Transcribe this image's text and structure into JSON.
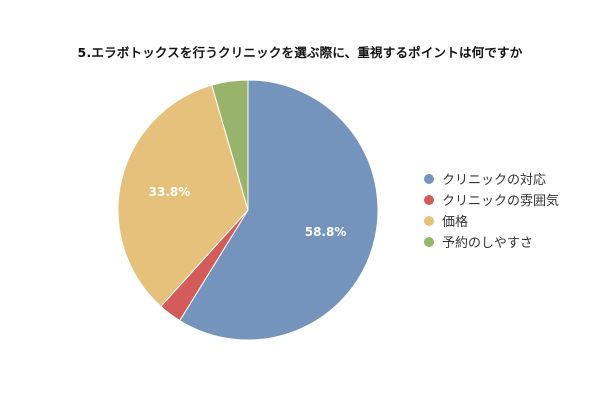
{
  "chart_data": {
    "type": "pie",
    "title": "5.エラボトックスを行うクリニックを選ぶ際に、重視するポイントは何ですか",
    "categories": [
      "クリニックの対応",
      "クリニックの雰囲気",
      "価格",
      "予約のしやすさ"
    ],
    "values": [
      58.8,
      2.9,
      33.8,
      4.5
    ],
    "data_labels": [
      "58.8%",
      "",
      "33.8%",
      ""
    ],
    "colors": [
      "#7594bd",
      "#d35b5a",
      "#e6c17b",
      "#98b36a"
    ],
    "legend_position": "right"
  }
}
